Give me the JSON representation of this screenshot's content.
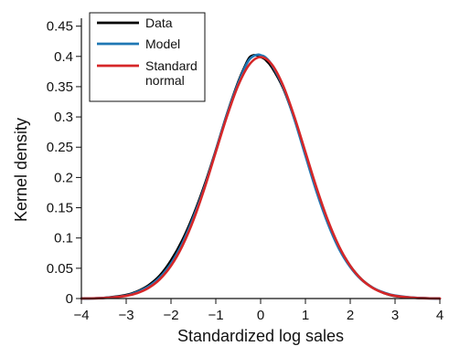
{
  "chart_data": {
    "type": "line",
    "xlabel": "Standardized log sales",
    "ylabel": "Kernel density",
    "xlim": [
      -4,
      4
    ],
    "ylim": [
      0,
      0.46
    ],
    "xticks": [
      -4,
      -3,
      -2,
      -1,
      0,
      1,
      2,
      3,
      4
    ],
    "xtick_labels": [
      "−4",
      "−3",
      "−2",
      "−1",
      "0",
      "1",
      "2",
      "3",
      "4"
    ],
    "yticks": [
      0,
      0.05,
      0.1,
      0.15,
      0.2,
      0.25,
      0.3,
      0.35,
      0.4,
      0.45
    ],
    "ytick_labels": [
      "0",
      "0.05",
      "0.1",
      "0.15",
      "0.2",
      "0.25",
      "0.3",
      "0.35",
      "0.4",
      "0.45"
    ],
    "grid": false,
    "legend_position": "top-left",
    "series": [
      {
        "name": "Data",
        "color": "#000000",
        "x": [
          -4,
          -3.5,
          -3,
          -2.75,
          -2.5,
          -2.25,
          -2,
          -1.75,
          -1.5,
          -1.25,
          -1,
          -0.75,
          -0.5,
          -0.35,
          -0.25,
          -0.15,
          -0.05,
          0,
          0.1,
          0.25,
          0.5,
          0.75,
          1,
          1.25,
          1.5,
          1.75,
          2,
          2.25,
          2.5,
          2.75,
          3,
          3.5,
          4
        ],
        "y": [
          0.0,
          0.001,
          0.006,
          0.012,
          0.022,
          0.038,
          0.063,
          0.096,
          0.138,
          0.188,
          0.245,
          0.305,
          0.358,
          0.384,
          0.398,
          0.402,
          0.401,
          0.399,
          0.395,
          0.382,
          0.348,
          0.298,
          0.24,
          0.18,
          0.128,
          0.085,
          0.054,
          0.032,
          0.018,
          0.009,
          0.004,
          0.001,
          0.0
        ]
      },
      {
        "name": "Model",
        "color": "#1f77b4",
        "x": [
          -4,
          -3.5,
          -3,
          -2.75,
          -2.5,
          -2.25,
          -2,
          -1.75,
          -1.5,
          -1.25,
          -1,
          -0.75,
          -0.5,
          -0.35,
          -0.25,
          -0.15,
          -0.05,
          0,
          0.1,
          0.25,
          0.5,
          0.75,
          1,
          1.25,
          1.5,
          1.75,
          2,
          2.25,
          2.5,
          2.75,
          3,
          3.5,
          4
        ],
        "y": [
          0.0,
          0.001,
          0.005,
          0.011,
          0.02,
          0.035,
          0.058,
          0.091,
          0.134,
          0.185,
          0.244,
          0.304,
          0.356,
          0.382,
          0.395,
          0.401,
          0.403,
          0.402,
          0.399,
          0.386,
          0.35,
          0.297,
          0.236,
          0.176,
          0.124,
          0.082,
          0.052,
          0.031,
          0.018,
          0.01,
          0.005,
          0.001,
          0.0
        ]
      },
      {
        "name": "Standard normal",
        "color": "#d62728",
        "x": [
          -4,
          -3.5,
          -3,
          -2.75,
          -2.5,
          -2.25,
          -2,
          -1.75,
          -1.5,
          -1.25,
          -1,
          -0.75,
          -0.5,
          -0.25,
          0,
          0.25,
          0.5,
          0.75,
          1,
          1.25,
          1.5,
          1.75,
          2,
          2.25,
          2.5,
          2.75,
          3,
          3.5,
          4
        ],
        "y": [
          0.0001,
          0.0009,
          0.0044,
          0.0091,
          0.0175,
          0.0317,
          0.054,
          0.0863,
          0.1295,
          0.1826,
          0.242,
          0.3011,
          0.3521,
          0.3867,
          0.3989,
          0.3867,
          0.3521,
          0.3011,
          0.242,
          0.1826,
          0.1295,
          0.0863,
          0.054,
          0.0317,
          0.0175,
          0.0091,
          0.0044,
          0.0009,
          0.0001
        ]
      }
    ],
    "legend": {
      "entries": [
        {
          "lines": [
            "Data"
          ],
          "color": "#000000"
        },
        {
          "lines": [
            "Model"
          ],
          "color": "#1f77b4"
        },
        {
          "lines": [
            "Standard",
            "normal"
          ],
          "color": "#d62728"
        }
      ]
    }
  }
}
